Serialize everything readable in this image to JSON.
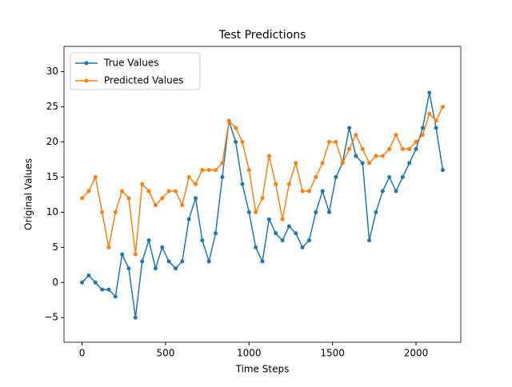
{
  "chart_data": {
    "type": "line",
    "title": "Test Predictions",
    "xlabel": "Time Steps",
    "ylabel": "Original Values",
    "x": [
      0,
      40,
      80,
      120,
      160,
      200,
      240,
      280,
      320,
      360,
      400,
      440,
      480,
      520,
      560,
      600,
      640,
      680,
      720,
      760,
      800,
      840,
      880,
      920,
      960,
      1000,
      1040,
      1080,
      1120,
      1160,
      1200,
      1240,
      1280,
      1320,
      1360,
      1400,
      1440,
      1480,
      1520,
      1560,
      1600,
      1640,
      1680,
      1720,
      1760,
      1800,
      1840,
      1880,
      1920,
      1960,
      2000,
      2040,
      2080,
      2120,
      2160
    ],
    "series": [
      {
        "name": "True Values",
        "color": "#1f77b4",
        "values": [
          0,
          1,
          0,
          -1,
          -1,
          -2,
          4,
          2,
          -5,
          3,
          6,
          2,
          5,
          3,
          2,
          3,
          9,
          12,
          6,
          3,
          7,
          15,
          23,
          20,
          14,
          10,
          5,
          3,
          9,
          7,
          6,
          8,
          7,
          5,
          6,
          10,
          13,
          10,
          15,
          17,
          22,
          18,
          17,
          6,
          10,
          13,
          15,
          13,
          15,
          17,
          19,
          22,
          27,
          22,
          16
        ]
      },
      {
        "name": "Predicted Values",
        "color": "#ff7f0e",
        "values": [
          12,
          13,
          15,
          10,
          5,
          10,
          13,
          12,
          4,
          14,
          13,
          11,
          12,
          13,
          13,
          11,
          15,
          14,
          16,
          16,
          16,
          17,
          23,
          22,
          20,
          16,
          10,
          12,
          18,
          14,
          9,
          14,
          17,
          13,
          13,
          15,
          17,
          20,
          20,
          17,
          19,
          21,
          19,
          17,
          18,
          18,
          19,
          21,
          19,
          19,
          20,
          21,
          24,
          23,
          25
        ]
      }
    ],
    "xlim": [
      -108,
      2268
    ],
    "ylim": [
      -8.5,
      33.6
    ],
    "xticks": [
      0,
      500,
      1000,
      1500,
      2000
    ],
    "yticks": [
      {
        "value": -5,
        "label": "−5"
      },
      0,
      5,
      10,
      15,
      20,
      25,
      30
    ],
    "legend": "upper left"
  }
}
